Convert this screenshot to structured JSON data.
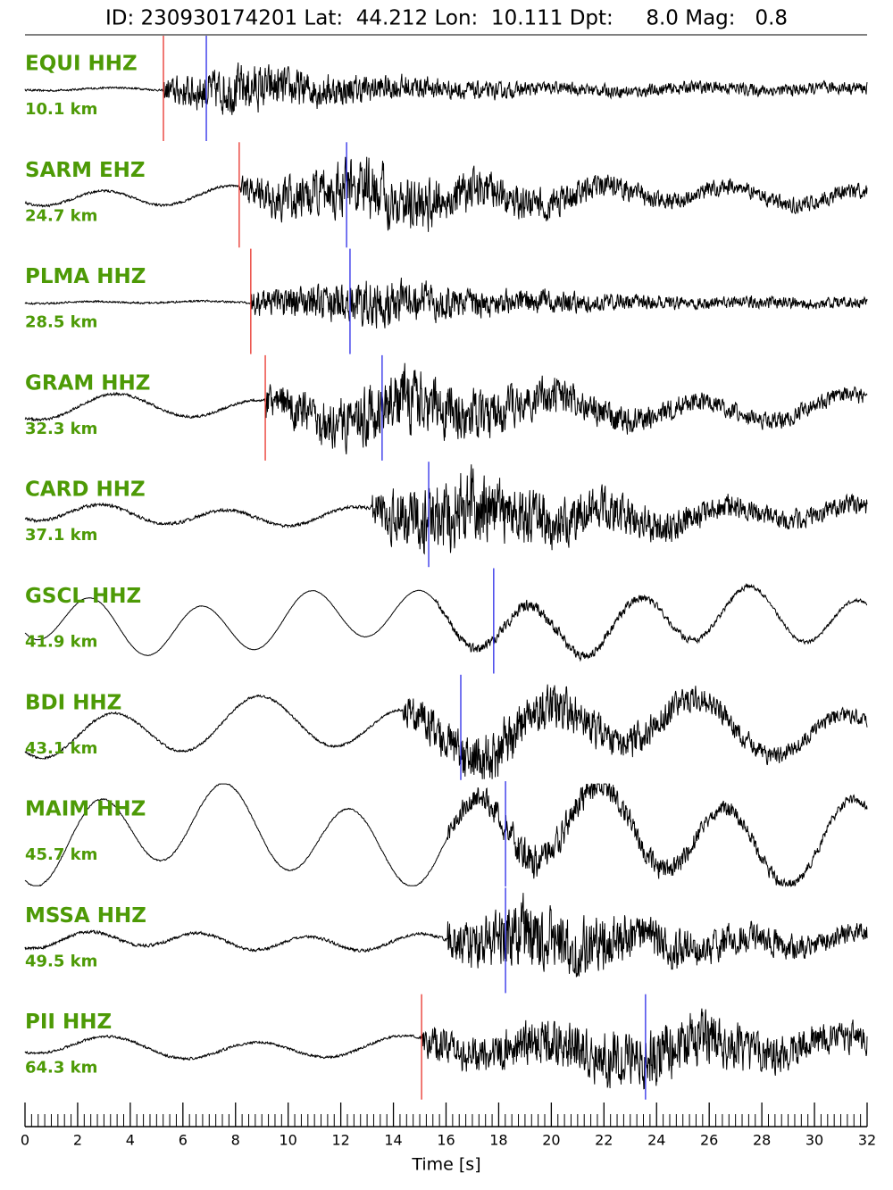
{
  "chart_data": {
    "type": "seismogram",
    "title": "ID: 230930174201 Lat:  44.212 Lon:  10.111 Dpt:     8.0 Mag:   0.8",
    "xlabel": "Time [s]",
    "xlim": [
      0,
      32
    ],
    "xticks": [
      0,
      2,
      4,
      6,
      8,
      10,
      12,
      14,
      16,
      18,
      20,
      22,
      24,
      26,
      28,
      30,
      32
    ],
    "label_color": "#4d9a06",
    "p_color": "#e8322a",
    "s_color": "#2a2ae8",
    "trace_color": "#000000",
    "traces": [
      {
        "station": "EQUI HHZ",
        "distance": "10.1 km",
        "p_pick": 5.26,
        "s_pick": 6.89
      },
      {
        "station": "SARM EHZ",
        "distance": "24.7 km",
        "p_pick": 8.14,
        "s_pick": 12.22
      },
      {
        "station": "PLMA HHZ",
        "distance": "28.5 km",
        "p_pick": 8.58,
        "s_pick": 12.35
      },
      {
        "station": "GRAM HHZ",
        "distance": "32.3 km",
        "p_pick": 9.13,
        "s_pick": 13.57
      },
      {
        "station": "CARD HHZ",
        "distance": "37.1 km",
        "s_pick": 15.34
      },
      {
        "station": "GSCL HHZ",
        "distance": "41.9 km",
        "s_pick": 17.81
      },
      {
        "station": "BDI HHZ",
        "distance": "43.1 km",
        "s_pick": 16.56
      },
      {
        "station": "MAIM HHZ",
        "distance": "45.7 km",
        "s_pick": 18.26
      },
      {
        "station": "MSSA HHZ",
        "distance": "49.5 km",
        "s_pick": 18.26
      },
      {
        "station": "PII HHZ",
        "distance": "64.3 km",
        "p_pick": 15.07,
        "s_pick": 23.58
      }
    ]
  }
}
